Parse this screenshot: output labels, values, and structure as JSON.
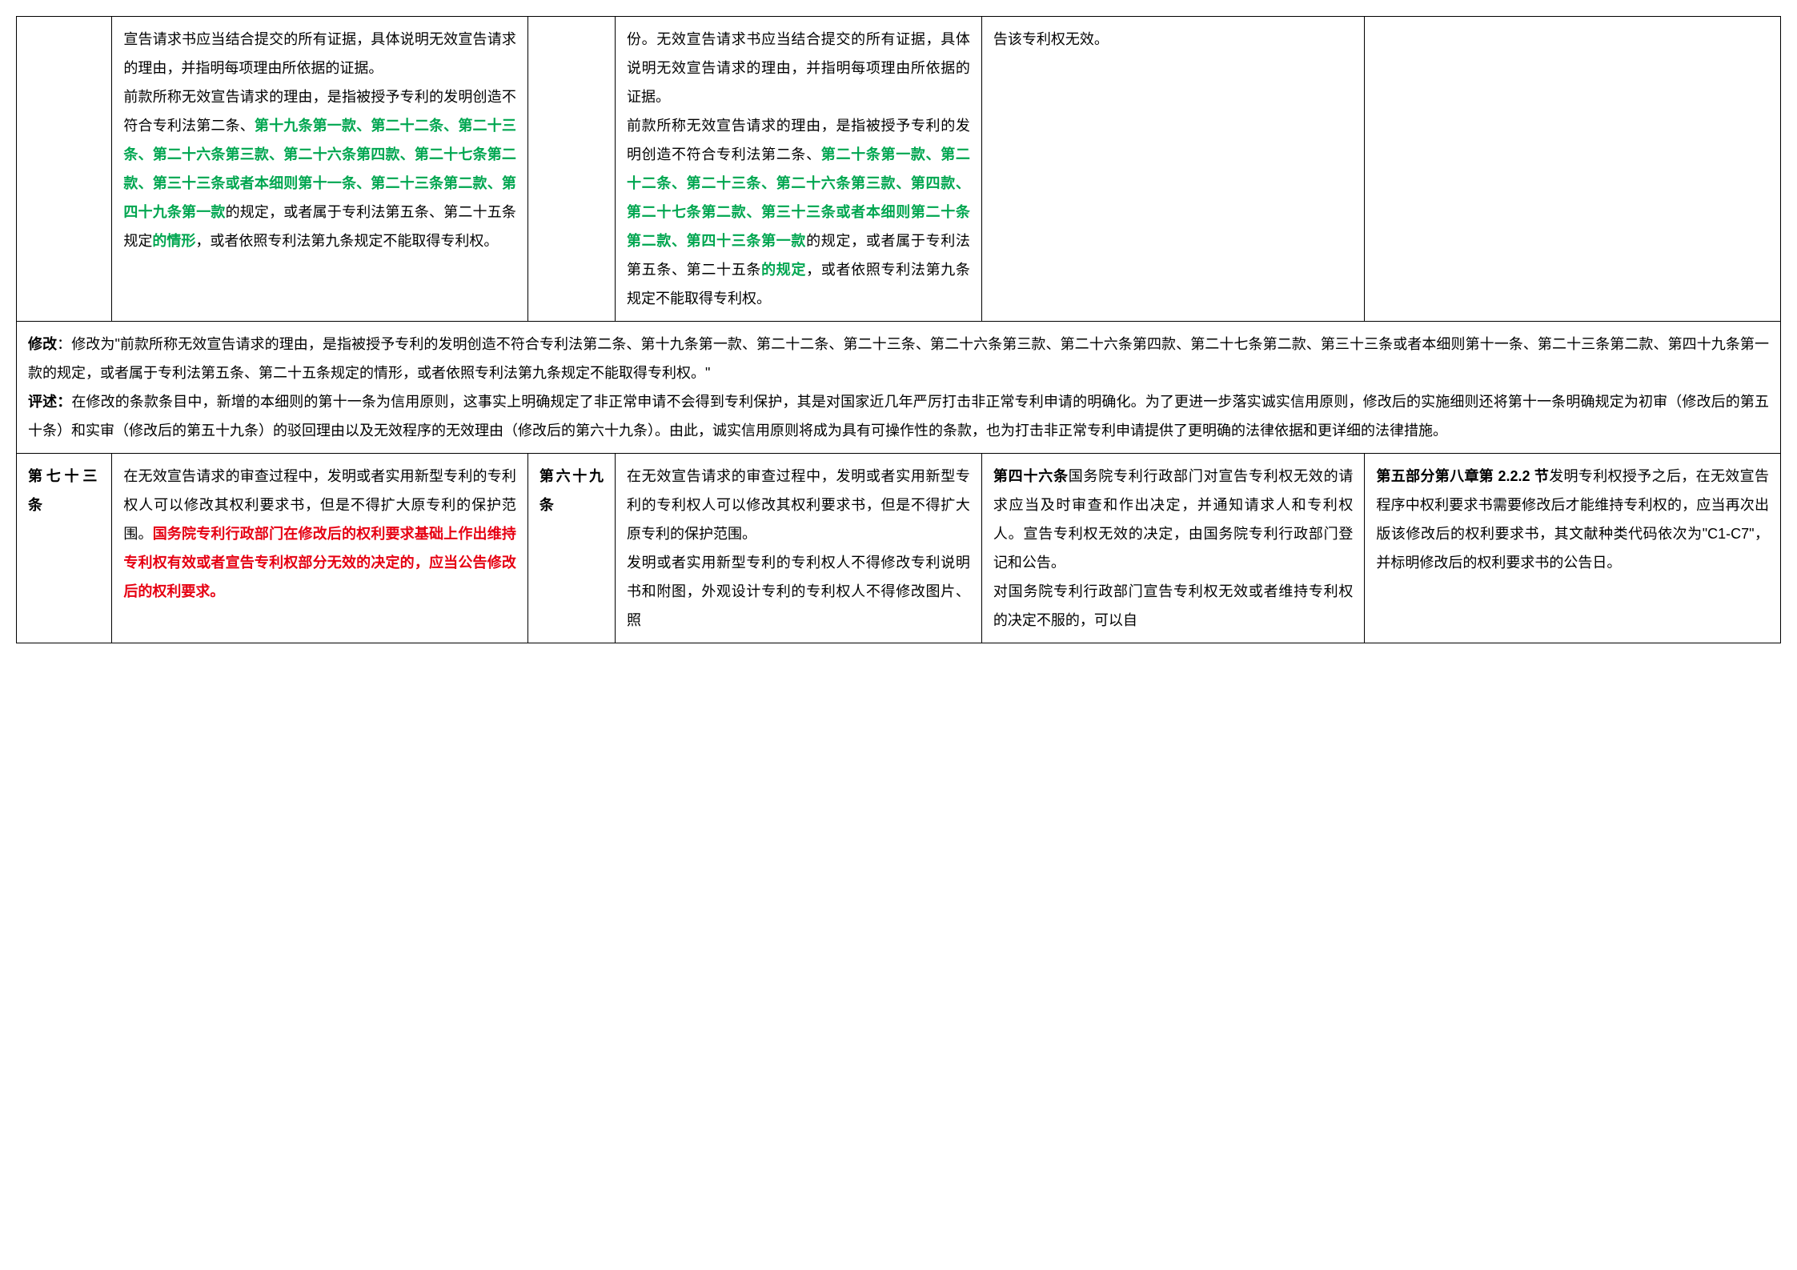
{
  "colors": {
    "text": "#000000",
    "border": "#000000",
    "green": "#00a650",
    "red": "#e60012",
    "background": "#ffffff"
  },
  "typography": {
    "base_fontsize_pt": 14,
    "line_height": 2.0,
    "font_family": "Microsoft YaHei / SimSun"
  },
  "row1": {
    "col1_num": "",
    "col2_p1_pre": "宣告请求书应当结合提交的所有证据，具体说明无效宣告请求的理由，并指明每项理由所依据的证据。",
    "col2_p2_pre": "前款所称无效宣告请求的理由，是指被授予专利的发明创造不符合专利法第二条、",
    "col2_p2_green": "第十九条第一款、第二十二条、第二十三条、第二十六条第三款、第二十六条第四款、第二十七条第二款、第三十三条或者本细则第十一条、第二十三条第二款、第四十九条第一款",
    "col2_p2_mid": "的规定，或者属于专利法第五条、第二十五条规定",
    "col2_p2_green2": "的情形",
    "col2_p2_post": "，或者依照专利法第九条规定不能取得专利权。",
    "col3_num": "",
    "col4_p1_pre": "份。无效宣告请求书应当结合提交的所有证据，具体说明无效宣告请求的理由，并指明每项理由所依据的证据。",
    "col4_p2_pre": "前款所称无效宣告请求的理由，是指被授予专利的发明创造不符合专利法第二条、",
    "col4_p2_green": "第二十条第一款、第二十二条、第二十三条、第二十六条第三款、第四款、第二十七条第二款、第三十三条或者本细则第二十条第二款、第四十三条第一款",
    "col4_p2_mid": "的规定，或者属于专利法第五条、第二十五条",
    "col4_p2_green2": "的规定",
    "col4_p2_post": "，或者依照专利法第九条规定不能取得专利权。",
    "col5_text": "告该专利权无效。",
    "col6_text": ""
  },
  "row2": {
    "mod_label": "修改",
    "mod_text": "：修改为\"前款所称无效宣告请求的理由，是指被授予专利的发明创造不符合专利法第二条、第十九条第一款、第二十二条、第二十三条、第二十六条第三款、第二十六条第四款、第二十七条第二款、第三十三条或者本细则第十一条、第二十三条第二款、第四十九条第一款的规定，或者属于专利法第五条、第二十五条规定的情形，或者依照专利法第九条规定不能取得专利权。\"",
    "comment_label": "评述：",
    "comment_text": "在修改的条款条目中，新增的本细则的第十一条为信用原则，这事实上明确规定了非正常申请不会得到专利保护，其是对国家近几年严厉打击非正常专利申请的明确化。为了更进一步落实诚实信用原则，修改后的实施细则还将第十一条明确规定为初审（修改后的第五十条）和实审（修改后的第五十九条）的驳回理由以及无效程序的无效理由（修改后的第六十九条）。由此，诚实信用原则将成为具有可操作性的条款，也为打击非正常专利申请提供了更明确的法律依据和更详细的法律措施。"
  },
  "row3": {
    "col1_num": "第七十三条",
    "col2_pre": "在无效宣告请求的审查过程中，发明或者实用新型专利的专利权人可以修改其权利要求书，但是不得扩大原专利的保护范围。",
    "col2_red": "国务院专利行政部门在修改后的权利要求基础上作出维持专利权有效或者宣告专利权部分无效的决定的，应当公告修改后的权利要求。",
    "col3_num": "第六十九条",
    "col4_p1": "在无效宣告请求的审查过程中，发明或者实用新型专利的专利权人可以修改其权利要求书，但是不得扩大原专利的保护范围。",
    "col4_p2": "发明或者实用新型专利的专利权人不得修改专利说明书和附图，外观设计专利的专利权人不得修改图片、照",
    "col5_bold": "第四十六条",
    "col5_p1": "国务院专利行政部门对宣告专利权无效的请求应当及时审查和作出决定，并通知请求人和专利权人。宣告专利权无效的决定，由国务院专利行政部门登记和公告。",
    "col5_p2": "对国务院专利行政部门宣告专利权无效或者维持专利权的决定不服的，可以自",
    "col6_bold": "第五部分第八章第 2.2.2 节",
    "col6_text": "发明专利权授予之后，在无效宣告程序中权利要求书需要修改后才能维持专利权的，应当再次出版该修改后的权利要求书，其文献种类代码依次为\"C1-C7\"，并标明修改后的权利要求书的公告日。"
  }
}
